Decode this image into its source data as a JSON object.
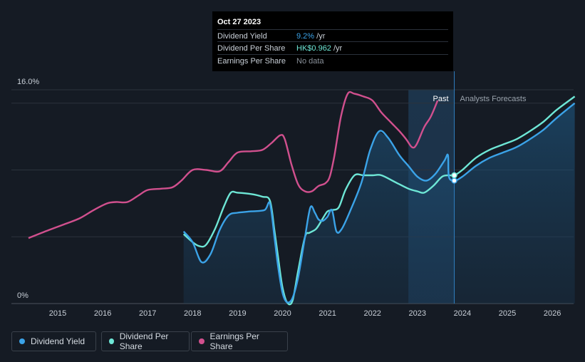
{
  "tooltip": {
    "date": "Oct 27 2023",
    "rows": [
      {
        "name": "Dividend Yield",
        "value": "9.2%",
        "unit": " /yr",
        "color": "#3ba3e8"
      },
      {
        "name": "Dividend Per Share",
        "value": "HK$0.962",
        "unit": " /yr",
        "color": "#6ee7d6"
      },
      {
        "name": "Earnings Per Share",
        "value": "No data",
        "unit": "",
        "color": "#8a919a"
      }
    ]
  },
  "labels": {
    "past": "Past",
    "forecast": "Analysts Forecasts"
  },
  "legend": [
    {
      "label": "Dividend Yield",
      "color": "#3ba3e8"
    },
    {
      "label": "Dividend Per Share",
      "color": "#6ee7d6"
    },
    {
      "label": "Earnings Per Share",
      "color": "#d1508e"
    }
  ],
  "chart_data": {
    "type": "line",
    "title": "",
    "xlabel": "",
    "ylabel": "",
    "xlim": [
      2014.35,
      2026.5
    ],
    "ylim": [
      0,
      16
    ],
    "y_tick_labels": [
      "0%",
      "16.0%"
    ],
    "x_ticks": [
      2015,
      2016,
      2017,
      2018,
      2019,
      2020,
      2021,
      2022,
      2023,
      2024,
      2025,
      2026
    ],
    "x_tick_labels": [
      "2015",
      "2016",
      "2017",
      "2018",
      "2019",
      "2020",
      "2021",
      "2022",
      "2023",
      "2024",
      "2025",
      "2026"
    ],
    "gridlines_y": [
      0,
      5,
      10,
      15,
      16
    ],
    "past_region": [
      2022.8,
      2023.82
    ],
    "current_date": 2023.82,
    "series": [
      {
        "name": "Dividend Yield",
        "color": "#3ba3e8",
        "fill": true,
        "points": [
          [
            2017.8,
            5.4
          ],
          [
            2018.0,
            4.6
          ],
          [
            2018.2,
            3.1
          ],
          [
            2018.4,
            3.7
          ],
          [
            2018.6,
            5.5
          ],
          [
            2018.8,
            6.6
          ],
          [
            2019.0,
            6.8
          ],
          [
            2019.3,
            6.9
          ],
          [
            2019.6,
            7.0
          ],
          [
            2019.72,
            7.5
          ],
          [
            2019.82,
            5.0
          ],
          [
            2019.9,
            2.8
          ],
          [
            2020.0,
            0.8
          ],
          [
            2020.1,
            0.1
          ],
          [
            2020.22,
            0.4
          ],
          [
            2020.35,
            2.0
          ],
          [
            2020.5,
            5.0
          ],
          [
            2020.62,
            7.2
          ],
          [
            2020.72,
            6.8
          ],
          [
            2020.8,
            6.3
          ],
          [
            2020.9,
            6.2
          ],
          [
            2021.0,
            6.5
          ],
          [
            2021.1,
            7.0
          ],
          [
            2021.2,
            5.4
          ],
          [
            2021.32,
            5.6
          ],
          [
            2021.5,
            6.9
          ],
          [
            2021.75,
            9.0
          ],
          [
            2021.95,
            11.5
          ],
          [
            2022.15,
            12.9
          ],
          [
            2022.35,
            12.4
          ],
          [
            2022.6,
            11.1
          ],
          [
            2022.8,
            10.3
          ],
          [
            2023.0,
            9.5
          ],
          [
            2023.2,
            9.2
          ],
          [
            2023.4,
            9.7
          ],
          [
            2023.6,
            10.7
          ],
          [
            2023.68,
            11.1
          ],
          [
            2023.7,
            9.5
          ],
          [
            2023.82,
            9.2
          ],
          [
            2024.0,
            9.5
          ],
          [
            2024.3,
            10.3
          ],
          [
            2024.6,
            10.9
          ],
          [
            2024.9,
            11.3
          ],
          [
            2025.2,
            11.7
          ],
          [
            2025.5,
            12.3
          ],
          [
            2025.8,
            13.0
          ],
          [
            2026.1,
            13.9
          ],
          [
            2026.5,
            15.0
          ]
        ]
      },
      {
        "name": "Dividend Per Share",
        "color": "#6ee7d6",
        "fill": false,
        "points": [
          [
            2017.8,
            5.2
          ],
          [
            2018.0,
            4.6
          ],
          [
            2018.15,
            4.3
          ],
          [
            2018.3,
            4.4
          ],
          [
            2018.5,
            5.6
          ],
          [
            2018.7,
            7.3
          ],
          [
            2018.85,
            8.3
          ],
          [
            2019.0,
            8.3
          ],
          [
            2019.3,
            8.2
          ],
          [
            2019.55,
            8.0
          ],
          [
            2019.72,
            7.7
          ],
          [
            2019.82,
            5.5
          ],
          [
            2019.92,
            3.0
          ],
          [
            2020.0,
            1.2
          ],
          [
            2020.1,
            0.1
          ],
          [
            2020.22,
            0.2
          ],
          [
            2020.35,
            2.5
          ],
          [
            2020.5,
            5.0
          ],
          [
            2020.6,
            5.3
          ],
          [
            2020.75,
            5.6
          ],
          [
            2020.9,
            6.4
          ],
          [
            2021.0,
            6.9
          ],
          [
            2021.1,
            7.0
          ],
          [
            2021.25,
            7.2
          ],
          [
            2021.4,
            8.5
          ],
          [
            2021.6,
            9.6
          ],
          [
            2021.8,
            9.6
          ],
          [
            2022.0,
            9.6
          ],
          [
            2022.2,
            9.6
          ],
          [
            2022.5,
            9.1
          ],
          [
            2022.8,
            8.6
          ],
          [
            2023.0,
            8.4
          ],
          [
            2023.15,
            8.3
          ],
          [
            2023.35,
            8.8
          ],
          [
            2023.55,
            9.5
          ],
          [
            2023.7,
            9.6
          ],
          [
            2023.82,
            9.6
          ],
          [
            2024.0,
            10.0
          ],
          [
            2024.3,
            10.9
          ],
          [
            2024.6,
            11.5
          ],
          [
            2024.9,
            11.9
          ],
          [
            2025.2,
            12.3
          ],
          [
            2025.5,
            12.9
          ],
          [
            2025.8,
            13.6
          ],
          [
            2026.1,
            14.5
          ],
          [
            2026.5,
            15.5
          ]
        ]
      },
      {
        "name": "Earnings Per Share",
        "color": "#d1508e",
        "fill": false,
        "points": [
          [
            2014.35,
            4.9
          ],
          [
            2014.8,
            5.5
          ],
          [
            2015.2,
            6.0
          ],
          [
            2015.5,
            6.4
          ],
          [
            2015.8,
            7.0
          ],
          [
            2016.1,
            7.5
          ],
          [
            2016.3,
            7.6
          ],
          [
            2016.55,
            7.6
          ],
          [
            2016.8,
            8.1
          ],
          [
            2017.0,
            8.5
          ],
          [
            2017.3,
            8.6
          ],
          [
            2017.55,
            8.7
          ],
          [
            2017.75,
            9.2
          ],
          [
            2018.0,
            10.0
          ],
          [
            2018.3,
            10.0
          ],
          [
            2018.6,
            9.9
          ],
          [
            2018.8,
            10.6
          ],
          [
            2019.0,
            11.3
          ],
          [
            2019.3,
            11.4
          ],
          [
            2019.55,
            11.5
          ],
          [
            2019.75,
            12.0
          ],
          [
            2019.95,
            12.6
          ],
          [
            2020.05,
            12.3
          ],
          [
            2020.2,
            10.4
          ],
          [
            2020.35,
            8.9
          ],
          [
            2020.5,
            8.4
          ],
          [
            2020.65,
            8.4
          ],
          [
            2020.8,
            8.8
          ],
          [
            2020.95,
            9.0
          ],
          [
            2021.05,
            9.5
          ],
          [
            2021.15,
            11.0
          ],
          [
            2021.3,
            14.0
          ],
          [
            2021.45,
            15.7
          ],
          [
            2021.6,
            15.7
          ],
          [
            2021.8,
            15.5
          ],
          [
            2022.0,
            15.2
          ],
          [
            2022.2,
            14.3
          ],
          [
            2022.4,
            13.6
          ],
          [
            2022.6,
            12.9
          ],
          [
            2022.75,
            12.3
          ],
          [
            2022.88,
            11.7
          ],
          [
            2022.98,
            11.9
          ],
          [
            2023.15,
            13.2
          ],
          [
            2023.3,
            14.0
          ],
          [
            2023.45,
            15.2
          ]
        ]
      }
    ]
  }
}
